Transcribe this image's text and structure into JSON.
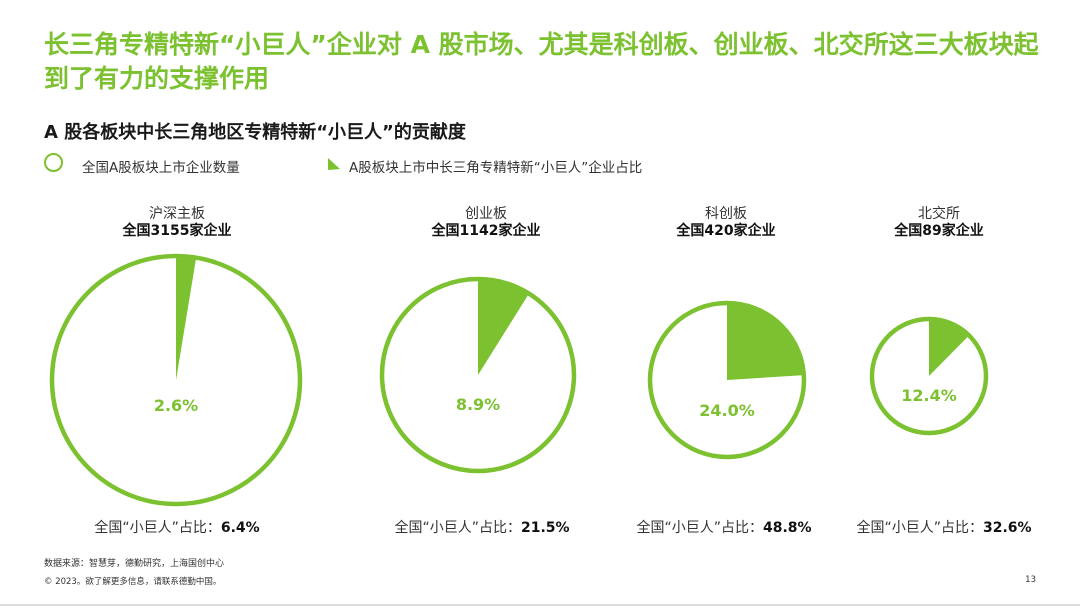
{
  "title": "长三角专精特新“小巨人”企业对 A 股市场、尤其是科创板、创业板、北交所这三大板块起到了有力的支撑作用",
  "subtitle": "A 股各板块中长三角地区专精特新“小巨人”的贡献度",
  "legend": {
    "total": "全国A股板块上市企业数量",
    "share": "A股板块上市中长三角专精特新“小巨人”企业占比"
  },
  "colors": {
    "accent": "#7cc130",
    "title": "#7cc130"
  },
  "chart_data": {
    "type": "pie",
    "title": "A 股各板块中长三角地区专精特新“小巨人”的贡献度",
    "series_names": [
      "全国A股板块上市企业数量",
      "A股板块上市中长三角专精特新“小巨人”企业占比"
    ],
    "boards": [
      {
        "name": "沪深主板",
        "total_label": "全国3155家企业",
        "total": 3155,
        "share": 2.6,
        "share_label": "2.6%",
        "national_prefix": "全国“小巨人”占比：",
        "national_value": "6.4%"
      },
      {
        "name": "创业板",
        "total_label": "全国1142家企业",
        "total": 1142,
        "share": 8.9,
        "share_label": "8.9%",
        "national_prefix": "全国“小巨人”占比：",
        "national_value": "21.5%"
      },
      {
        "name": "科创板",
        "total_label": "全国420家企业",
        "total": 420,
        "share": 24.0,
        "share_label": "24.0%",
        "national_prefix": "全国“小巨人”占比：",
        "national_value": "48.8%"
      },
      {
        "name": "北交所",
        "total_label": "全国89家企业",
        "total": 89,
        "share": 12.4,
        "share_label": "12.4%",
        "national_prefix": "全国“小巨人”占比：",
        "national_value": "32.6%"
      }
    ]
  },
  "footer": {
    "source": "数据来源：智慧芽，德勤研究，上海国创中心",
    "copyright": "© 2023。欲了解更多信息，请联系德勤中国。",
    "page": "13"
  }
}
